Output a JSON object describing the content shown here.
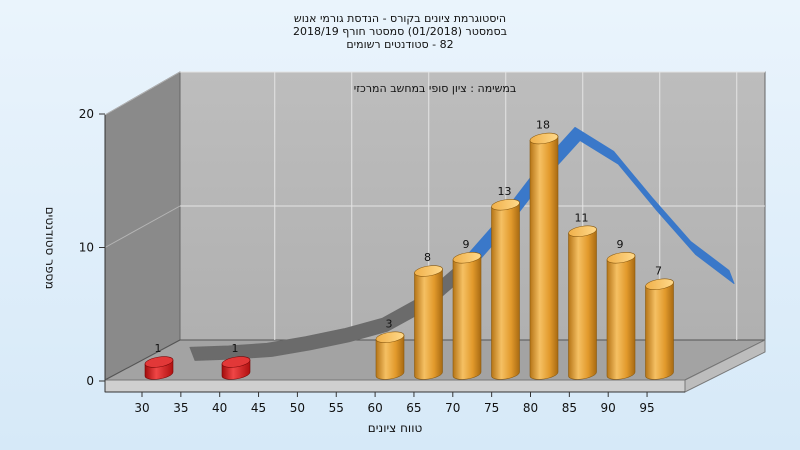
{
  "chart_data": {
    "type": "bar",
    "title_lines": [
      "היסטוגרמת ציונים בקורס - הנדסת גורמי אנוש",
      "בסמסטר  (01/2018)  סמסטר חורף 2018/19",
      "82 - סטודנטים רשומים"
    ],
    "annotation": "במשימה : ציון סופי במחשב המרכזי",
    "xlabel": "טווח ציונים",
    "ylabel": "מספר סטודנטים",
    "x_ticks": [
      "30",
      "35",
      "40",
      "45",
      "50",
      "55",
      "60",
      "65",
      "70",
      "75",
      "80",
      "85",
      "90",
      "95"
    ],
    "y_ticks": [
      "0",
      "10",
      "20"
    ],
    "ylim": [
      0,
      20
    ],
    "bars": [
      {
        "x": 30,
        "value": 1,
        "label": "1",
        "color": "#d82020"
      },
      {
        "x": 40,
        "value": 1,
        "label": "1",
        "color": "#d82020"
      },
      {
        "x": 60,
        "value": 3,
        "label": "3",
        "color": "#e8a035"
      },
      {
        "x": 65,
        "value": 8,
        "label": "8",
        "color": "#e8a035"
      },
      {
        "x": 70,
        "value": 9,
        "label": "9",
        "color": "#e8a035"
      },
      {
        "x": 75,
        "value": 13,
        "label": "13",
        "color": "#e8a035"
      },
      {
        "x": 80,
        "value": 18,
        "label": "18",
        "color": "#e8a035"
      },
      {
        "x": 85,
        "value": 11,
        "label": "11",
        "color": "#e8a035"
      },
      {
        "x": 90,
        "value": 9,
        "label": "9",
        "color": "#e8a035"
      },
      {
        "x": 95,
        "value": 7,
        "label": "7",
        "color": "#e8a035"
      }
    ],
    "trend": [
      {
        "x": 30,
        "y": 0.2
      },
      {
        "x": 35,
        "y": 0.3
      },
      {
        "x": 40,
        "y": 0.5
      },
      {
        "x": 45,
        "y": 1.0
      },
      {
        "x": 50,
        "y": 1.6
      },
      {
        "x": 55,
        "y": 2.4
      },
      {
        "x": 60,
        "y": 4.0
      },
      {
        "x": 65,
        "y": 6.5
      },
      {
        "x": 70,
        "y": 9.8
      },
      {
        "x": 75,
        "y": 13.6
      },
      {
        "x": 80,
        "y": 16.8
      },
      {
        "x": 85,
        "y": 15.0
      },
      {
        "x": 90,
        "y": 11.5
      },
      {
        "x": 95,
        "y": 8.2
      },
      {
        "x": 100,
        "y": 6.0
      }
    ],
    "trend_colors": {
      "low": "#6b6b6b",
      "high": "#3a78c9"
    },
    "grid": true,
    "colors": {
      "wall": "#b8b8b8",
      "side_wall": "#8c8c8c",
      "floor": "#a8a8a8",
      "grid": "#e4e4e4"
    }
  }
}
